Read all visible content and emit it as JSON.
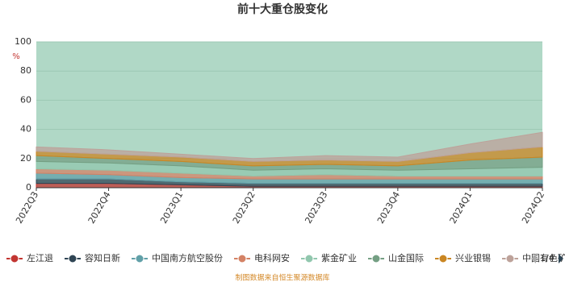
{
  "chart_data": {
    "type": "stacked_area",
    "title": "前十大重仓股变化",
    "y_unit": "%",
    "categories": [
      "2022Q3",
      "2022Q4",
      "2023Q1",
      "2023Q2",
      "2023Q3",
      "2023Q4",
      "2024Q1",
      "2024Q2"
    ],
    "series": [
      {
        "name": "左江退",
        "color": "#c23531",
        "values": [
          3,
          3,
          2,
          1,
          1,
          1,
          1,
          1
        ]
      },
      {
        "name": "容知日新",
        "color": "#2f4554",
        "values": [
          3,
          3,
          2,
          2,
          2,
          2,
          2,
          2
        ]
      },
      {
        "name": "中国南方航空股份",
        "color": "#61a0a8",
        "values": [
          4,
          3,
          3,
          3,
          3,
          3,
          3,
          3
        ]
      },
      {
        "name": "电科网安",
        "color": "#d48265",
        "values": [
          3,
          3,
          3,
          2,
          3,
          2,
          2,
          2
        ]
      },
      {
        "name": "紫金矿业",
        "color": "#91c7ae",
        "values": [
          5,
          5,
          5,
          4,
          4,
          4,
          5,
          6
        ]
      },
      {
        "name": "山金国际",
        "color": "#749f83",
        "values": [
          4,
          3,
          3,
          3,
          3,
          3,
          6,
          7
        ]
      },
      {
        "name": "兴业银锡",
        "color": "#ca8622",
        "values": [
          3,
          3,
          3,
          3,
          3,
          3,
          5,
          7
        ]
      },
      {
        "name": "中国有色矿",
        "color": "#bda29a",
        "values": [
          3,
          3,
          2,
          2,
          3,
          3,
          6,
          10
        ]
      }
    ],
    "ylim": [
      0,
      100
    ],
    "yticks": [
      0,
      20,
      40,
      60,
      80,
      100
    ],
    "grid": true,
    "legend_page": "1/4",
    "source": "制图数据来自恒生聚源数据库"
  }
}
